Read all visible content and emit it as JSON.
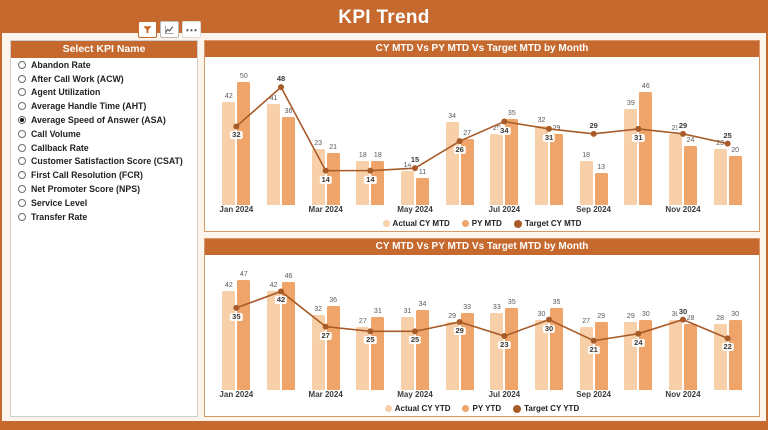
{
  "header": {
    "title": "KPI Trend"
  },
  "toolbar": {
    "more_label": "⋯"
  },
  "sidebar": {
    "title": "Select KPI Name",
    "items": [
      {
        "label": "Abandon Rate",
        "selected": false
      },
      {
        "label": "After Call Work (ACW)",
        "selected": false
      },
      {
        "label": "Agent Utilization",
        "selected": false
      },
      {
        "label": "Average Handle Time (AHT)",
        "selected": false
      },
      {
        "label": "Average Speed of Answer (ASA)",
        "selected": true
      },
      {
        "label": "Call Volume",
        "selected": false
      },
      {
        "label": "Callback Rate",
        "selected": false
      },
      {
        "label": "Customer Satisfaction Score (CSAT)",
        "selected": false
      },
      {
        "label": "First Call Resolution (FCR)",
        "selected": false
      },
      {
        "label": "Net Promoter Score (NPS)",
        "selected": false
      },
      {
        "label": "Service Level",
        "selected": false
      },
      {
        "label": "Transfer Rate",
        "selected": false
      }
    ]
  },
  "colors": {
    "accent": "#C5692E",
    "bar_actual": "#F7CFA9",
    "bar_py": "#EFA469",
    "line_target": "#A85B28"
  },
  "chart_data": [
    {
      "type": "combo-bar-line",
      "title": "CY MTD Vs PY MTD Vs Target MTD by Month",
      "categories": [
        "Jan 2024",
        "Feb 2024",
        "Mar 2024",
        "Apr 2024",
        "May 2024",
        "Jun 2024",
        "Jul 2024",
        "Aug 2024",
        "Sep 2024",
        "Oct 2024",
        "Nov 2024",
        "Dec 2024"
      ],
      "x_tick_labels": [
        "Jan 2024",
        "Mar 2024",
        "May 2024",
        "Jul 2024",
        "Sep 2024",
        "Nov 2024"
      ],
      "ylim": [
        0,
        55
      ],
      "grid": false,
      "legend_position": "bottom",
      "series": [
        {
          "name": "Actual CY MTD",
          "type": "bar",
          "color": "#F7CFA9",
          "values": [
            42,
            41,
            23,
            18,
            14,
            34,
            29,
            32,
            18,
            39,
            29,
            23
          ]
        },
        {
          "name": "PY MTD",
          "type": "bar",
          "color": "#EFA469",
          "values": [
            50,
            36,
            21,
            18,
            11,
            27,
            35,
            29,
            13,
            46,
            24,
            20
          ]
        },
        {
          "name": "Target CY MTD",
          "type": "line",
          "color": "#A85B28",
          "values": [
            32,
            48,
            14,
            14,
            15,
            26,
            34,
            31,
            29,
            31,
            29,
            25
          ]
        }
      ]
    },
    {
      "type": "combo-bar-line",
      "title": "CY MTD Vs PY MTD Vs Target MTD by Month",
      "categories": [
        "Jan 2024",
        "Feb 2024",
        "Mar 2024",
        "Apr 2024",
        "May 2024",
        "Jun 2024",
        "Jul 2024",
        "Aug 2024",
        "Sep 2024",
        "Oct 2024",
        "Nov 2024",
        "Dec 2024"
      ],
      "x_tick_labels": [
        "Jan 2024",
        "Mar 2024",
        "May 2024",
        "Jul 2024",
        "Sep 2024",
        "Nov 2024"
      ],
      "ylim": [
        0,
        52
      ],
      "grid": false,
      "legend_position": "bottom",
      "series": [
        {
          "name": "Actual CY YTD",
          "type": "bar",
          "color": "#F7CFA9",
          "values": [
            42,
            42,
            32,
            27,
            31,
            29,
            33,
            30,
            27,
            29,
            30,
            28
          ]
        },
        {
          "name": "PY YTD",
          "type": "bar",
          "color": "#EFA469",
          "values": [
            47,
            46,
            36,
            31,
            34,
            33,
            35,
            35,
            29,
            30,
            28,
            30
          ]
        },
        {
          "name": "Target CY YTD",
          "type": "line",
          "color": "#A85B28",
          "values": [
            35,
            42,
            27,
            25,
            25,
            29,
            23,
            30,
            21,
            24,
            30,
            22
          ]
        }
      ]
    }
  ]
}
